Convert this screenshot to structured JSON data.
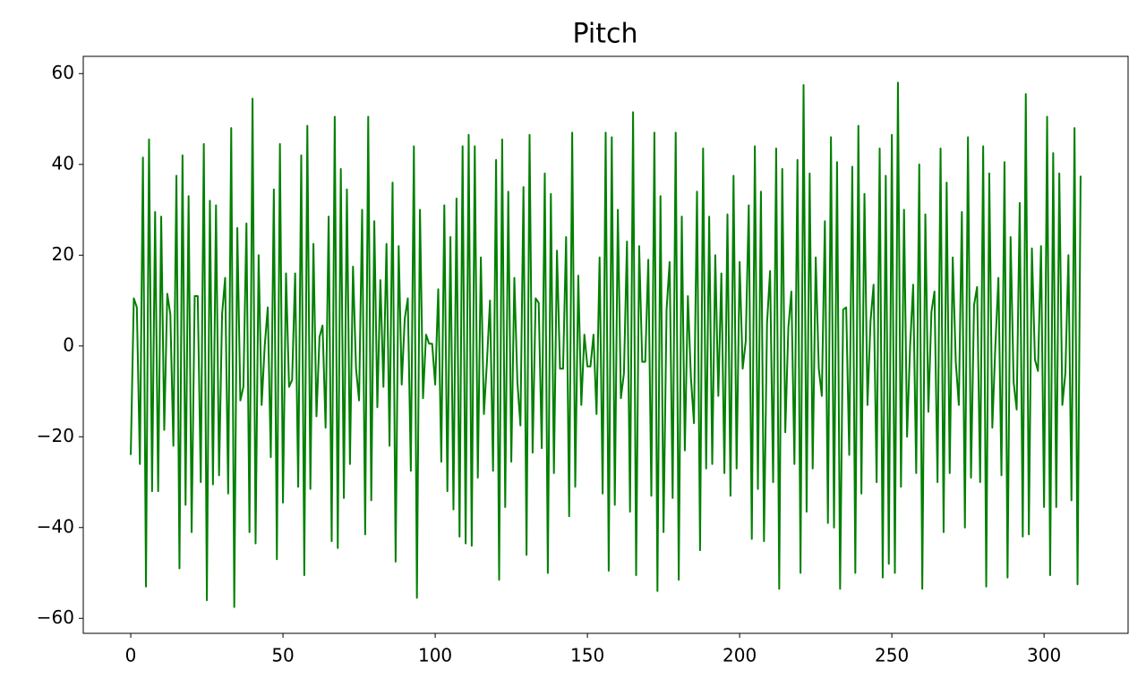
{
  "chart_data": {
    "type": "line",
    "title": "Pitch",
    "color": "#008000",
    "x": [
      0,
      1,
      2,
      3,
      4,
      5,
      6,
      7,
      8,
      9,
      10,
      11,
      12,
      13,
      14,
      15,
      16,
      17,
      18,
      19,
      20,
      21,
      22,
      23,
      24,
      25,
      26,
      27,
      28,
      29,
      30,
      31,
      32,
      33,
      34,
      35,
      36,
      37,
      38,
      39,
      40,
      41,
      42,
      43,
      44,
      45,
      46,
      47,
      48,
      49,
      50,
      51,
      52,
      53,
      54,
      55,
      56,
      57,
      58,
      59,
      60,
      61,
      62,
      63,
      64,
      65,
      66,
      67,
      68,
      69,
      70,
      71,
      72,
      73,
      74,
      75,
      76,
      77,
      78,
      79,
      80,
      81,
      82,
      83,
      84,
      85,
      86,
      87,
      88,
      89,
      90,
      91,
      92,
      93,
      94,
      95,
      96,
      97,
      98,
      99,
      100,
      101,
      102,
      103,
      104,
      105,
      106,
      107,
      108,
      109,
      110,
      111,
      112,
      113,
      114,
      115,
      116,
      117,
      118,
      119,
      120,
      121,
      122,
      123,
      124,
      125,
      126,
      127,
      128,
      129,
      130,
      131,
      132,
      133,
      134,
      135,
      136,
      137,
      138,
      139,
      140,
      141,
      142,
      143,
      144,
      145,
      146,
      147,
      148,
      149,
      150,
      151,
      152,
      153,
      154,
      155,
      156,
      157,
      158,
      159,
      160,
      161,
      162,
      163,
      164,
      165,
      166,
      167,
      168,
      169,
      170,
      171,
      172,
      173,
      174,
      175,
      176,
      177,
      178,
      179,
      180,
      181,
      182,
      183,
      184,
      185,
      186,
      187,
      188,
      189,
      190,
      191,
      192,
      193,
      194,
      195,
      196,
      197,
      198,
      199,
      200,
      201,
      202,
      203,
      204,
      205,
      206,
      207,
      208,
      209,
      210,
      211,
      212,
      213,
      214,
      215,
      216,
      217,
      218,
      219,
      220,
      221,
      222,
      223,
      224,
      225,
      226,
      227,
      228,
      229,
      230,
      231,
      232,
      233,
      234,
      235,
      236,
      237,
      238,
      239,
      240,
      241,
      242,
      243,
      244,
      245,
      246,
      247,
      248,
      249,
      250,
      251,
      252,
      253,
      254,
      255,
      256,
      257,
      258,
      259,
      260,
      261,
      262,
      263,
      264,
      265,
      266,
      267,
      268,
      269,
      270,
      271,
      272,
      273,
      274,
      275,
      276,
      277,
      278,
      279,
      280,
      281,
      282,
      283,
      284,
      285,
      286,
      287,
      288,
      289,
      290,
      291,
      292,
      293,
      294,
      295,
      296,
      297,
      298,
      299,
      300,
      301,
      302,
      303,
      304,
      305,
      306,
      307,
      308,
      309,
      310,
      311,
      312
    ],
    "values": [
      -24,
      10.5,
      8.5,
      -26,
      41.5,
      -53,
      45.5,
      -32,
      29.5,
      -32,
      28.5,
      -18.5,
      11.5,
      7,
      -22,
      37.5,
      -49,
      42,
      -35,
      33,
      -41,
      11,
      11,
      -30,
      44.5,
      -56,
      32,
      -30.5,
      31,
      -28.5,
      7,
      15,
      -32.5,
      48,
      -57.5,
      26,
      -12,
      -9,
      27,
      -41,
      54.5,
      -43.5,
      20,
      -13,
      0,
      8.5,
      -24.5,
      34.5,
      -47,
      44.5,
      -34.5,
      16,
      -9,
      -7.5,
      16,
      -31,
      42,
      -50.5,
      48.5,
      -31.5,
      22.5,
      -15.5,
      2,
      4.5,
      -18,
      28.5,
      -43,
      50.5,
      -44.5,
      39,
      -33.5,
      34.5,
      -26,
      17.5,
      -5,
      -12,
      30,
      -41.5,
      50.5,
      -34,
      27.5,
      -13.5,
      14.5,
      -9,
      22.5,
      -22,
      36,
      -47.5,
      22,
      -8.5,
      6,
      10.5,
      -27.5,
      44,
      -55.5,
      30,
      -11.5,
      2.5,
      0.5,
      0.5,
      -8.5,
      12.5,
      -25.5,
      31,
      -32,
      24,
      -36,
      32.5,
      -42,
      44,
      -43.5,
      46.5,
      -44,
      44,
      -29,
      19.5,
      -15,
      -3.5,
      10,
      -27.5,
      41,
      -51.5,
      45.5,
      -35.5,
      34,
      -25.5,
      15,
      -8,
      -17.5,
      35,
      -46,
      46.5,
      -23.5,
      10.5,
      9.5,
      -22.5,
      38,
      -50,
      33.5,
      -28,
      21,
      -5,
      -5,
      24,
      -37.5,
      47,
      -31,
      15.5,
      -13,
      2.5,
      -4.5,
      -4.5,
      2.5,
      -15,
      19.5,
      -32.5,
      47,
      -49.5,
      46,
      -35,
      30,
      -11.5,
      -6,
      23,
      -36.5,
      51.5,
      -50.5,
      22,
      -3.5,
      -3.5,
      19,
      -33,
      47,
      -54,
      33,
      -41,
      8,
      18.5,
      -33.5,
      47,
      -51.5,
      28.5,
      -23,
      11,
      -7,
      -17,
      34,
      -45,
      43.5,
      -27,
      28.5,
      -26,
      20,
      -11,
      16,
      -28,
      29,
      -33,
      37.5,
      -27,
      18.5,
      -5,
      1,
      31,
      -42.5,
      44,
      -31.5,
      34,
      -43,
      5,
      16.5,
      -30,
      43.5,
      -53.5,
      39,
      -19,
      4,
      12,
      -26,
      41,
      -50,
      57.5,
      -36.5,
      38,
      -27,
      19.5,
      -5,
      -11,
      27.5,
      -39,
      46,
      -40,
      40.5,
      -53.5,
      8,
      8.5,
      -24,
      39.5,
      -50,
      48.5,
      -32.5,
      33.5,
      -13,
      5.5,
      13.5,
      -30,
      43.5,
      -51,
      37.5,
      -48,
      46.5,
      -50,
      58,
      -31,
      30,
      -20,
      0,
      13.5,
      -28,
      40,
      -53.5,
      29,
      -14.5,
      7.5,
      12,
      -30,
      43.5,
      -41,
      36,
      -28,
      19.5,
      -3.5,
      -13,
      29.5,
      -40,
      46,
      -29,
      9,
      13,
      -30,
      44,
      -53,
      38,
      -18,
      0,
      15,
      -28.5,
      40.5,
      -51,
      24,
      -8,
      -14,
      31.5,
      -42,
      55.5,
      -41.5,
      21.5,
      -3,
      -5.5,
      22,
      -35.5,
      50.5,
      -50.5,
      42.5,
      -35.5,
      38,
      -13,
      -6,
      20,
      -34,
      48,
      -52.5,
      37.5
    ],
    "xlim": [
      -15.6,
      327.6
    ],
    "ylim": [
      -63.3,
      63.8
    ],
    "xticks": [
      0,
      50,
      100,
      150,
      200,
      250,
      300
    ],
    "yticks": [
      {
        "value": -60,
        "label": "−60"
      },
      {
        "value": -40,
        "label": "−40"
      },
      {
        "value": -20,
        "label": "−20"
      },
      0,
      20,
      40,
      60
    ]
  }
}
